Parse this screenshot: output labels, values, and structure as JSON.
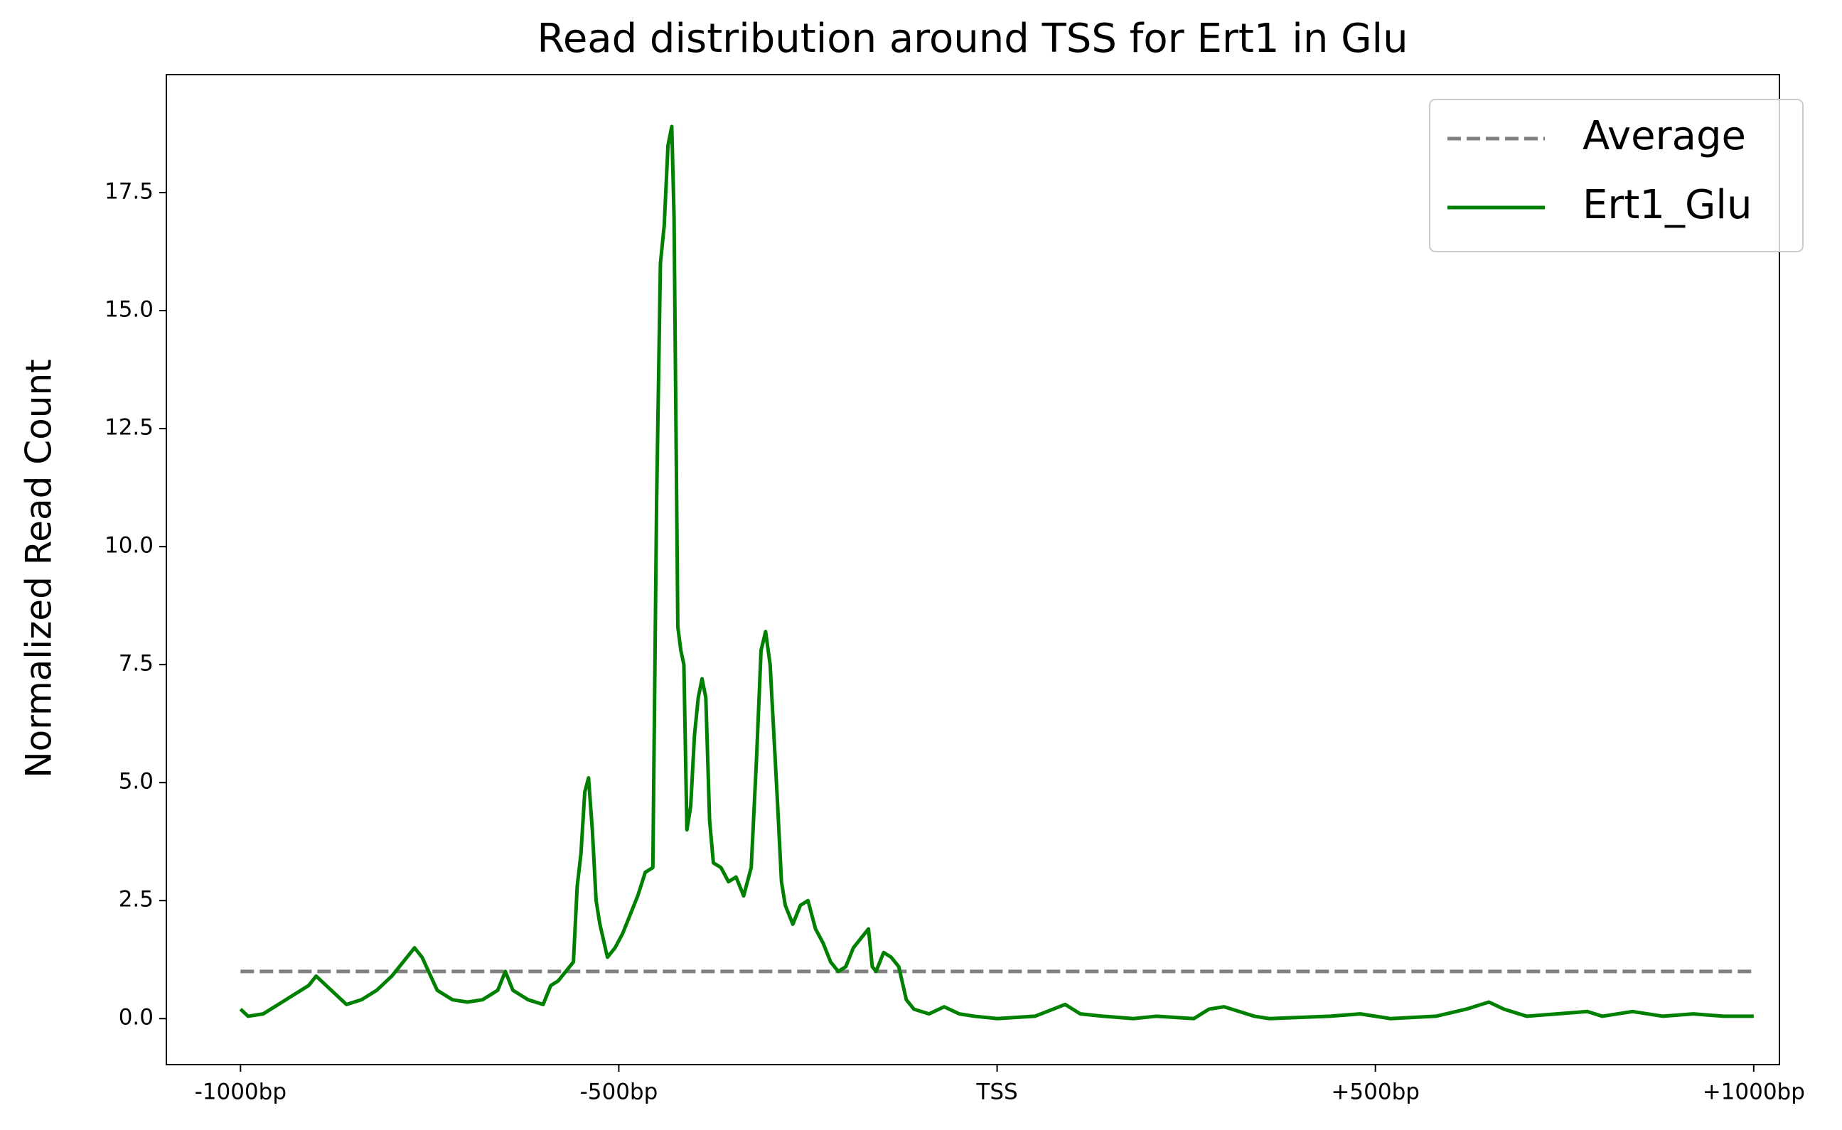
{
  "chart_data": {
    "type": "line",
    "title": "Read distribution around TSS for Ert1 in Glu",
    "y_label": "Normalized Read Count",
    "xlim": [
      -1098,
      1034
    ],
    "ylim": [
      -0.975,
      20
    ],
    "xticks": [
      {
        "value": -1000,
        "label": "-1000bp"
      },
      {
        "value": -500,
        "label": "-500bp"
      },
      {
        "value": 0,
        "label": "TSS"
      },
      {
        "value": 500,
        "label": "+500bp"
      },
      {
        "value": 1000,
        "label": "+1000bp"
      }
    ],
    "yticks": [
      {
        "value": 0,
        "label": "0.0"
      },
      2.5,
      {
        "value": 5,
        "label": "5.0"
      },
      7.5,
      {
        "value": 10,
        "label": "10.0"
      },
      12.5,
      {
        "value": 15,
        "label": "15.0"
      },
      17.5
    ],
    "grid": false,
    "legend": "upper right",
    "series": [
      {
        "name": "Average",
        "color": "#808080",
        "linestyle": "dashed",
        "x": [
          -1000,
          1000
        ],
        "values": [
          1,
          1
        ]
      },
      {
        "name": "Ert1_Glu",
        "color": "#008000",
        "linestyle": "solid",
        "x": [
          -1000,
          -990,
          -970,
          -950,
          -930,
          -910,
          -900,
          -880,
          -860,
          -840,
          -820,
          -800,
          -780,
          -770,
          -760,
          -740,
          -720,
          -700,
          -680,
          -660,
          -650,
          -640,
          -620,
          -600,
          -590,
          -580,
          -570,
          -560,
          -555,
          -550,
          -545,
          -540,
          -535,
          -530,
          -525,
          -515,
          -505,
          -495,
          -485,
          -475,
          -465,
          -455,
          -450,
          -445,
          -440,
          -435,
          -430,
          -427,
          -422,
          -418,
          -414,
          -410,
          -405,
          -400,
          -395,
          -390,
          -385,
          -380,
          -375,
          -365,
          -355,
          -345,
          -335,
          -325,
          -318,
          -312,
          -306,
          -300,
          -295,
          -290,
          -285,
          -280,
          -270,
          -260,
          -250,
          -240,
          -230,
          -220,
          -210,
          -200,
          -190,
          -180,
          -170,
          -165,
          -160,
          -150,
          -140,
          -130,
          -120,
          -110,
          -90,
          -70,
          -50,
          -30,
          0,
          50,
          90,
          110,
          140,
          180,
          210,
          260,
          280,
          300,
          320,
          340,
          360,
          440,
          480,
          520,
          580,
          620,
          650,
          670,
          700,
          740,
          780,
          800,
          840,
          880,
          920,
          960,
          1000
        ],
        "values": [
          0.2,
          0.05,
          0.1,
          0.3,
          0.5,
          0.7,
          0.9,
          0.6,
          0.3,
          0.4,
          0.6,
          0.9,
          1.3,
          1.5,
          1.3,
          0.6,
          0.4,
          0.35,
          0.4,
          0.6,
          1.0,
          0.6,
          0.4,
          0.3,
          0.7,
          0.8,
          1.0,
          1.2,
          2.8,
          3.5,
          4.8,
          5.1,
          4.0,
          2.5,
          2.0,
          1.3,
          1.5,
          1.8,
          2.2,
          2.6,
          3.1,
          3.2,
          11.0,
          16.0,
          16.8,
          18.5,
          18.9,
          17.0,
          8.3,
          7.8,
          7.5,
          4.0,
          4.5,
          6.0,
          6.8,
          7.2,
          6.8,
          4.2,
          3.3,
          3.2,
          2.9,
          3.0,
          2.6,
          3.2,
          5.5,
          7.8,
          8.2,
          7.5,
          6.0,
          4.5,
          2.9,
          2.4,
          2.0,
          2.4,
          2.5,
          1.9,
          1.6,
          1.2,
          1.0,
          1.1,
          1.5,
          1.7,
          1.9,
          1.1,
          1.0,
          1.4,
          1.3,
          1.1,
          0.4,
          0.2,
          0.1,
          0.25,
          0.1,
          0.05,
          0.0,
          0.05,
          0.3,
          0.1,
          0.05,
          0.0,
          0.05,
          0.0,
          0.2,
          0.25,
          0.15,
          0.05,
          0.0,
          0.05,
          0.1,
          0.0,
          0.05,
          0.2,
          0.35,
          0.2,
          0.05,
          0.1,
          0.15,
          0.05,
          0.15,
          0.05,
          0.1,
          0.05,
          0.05
        ]
      }
    ]
  }
}
